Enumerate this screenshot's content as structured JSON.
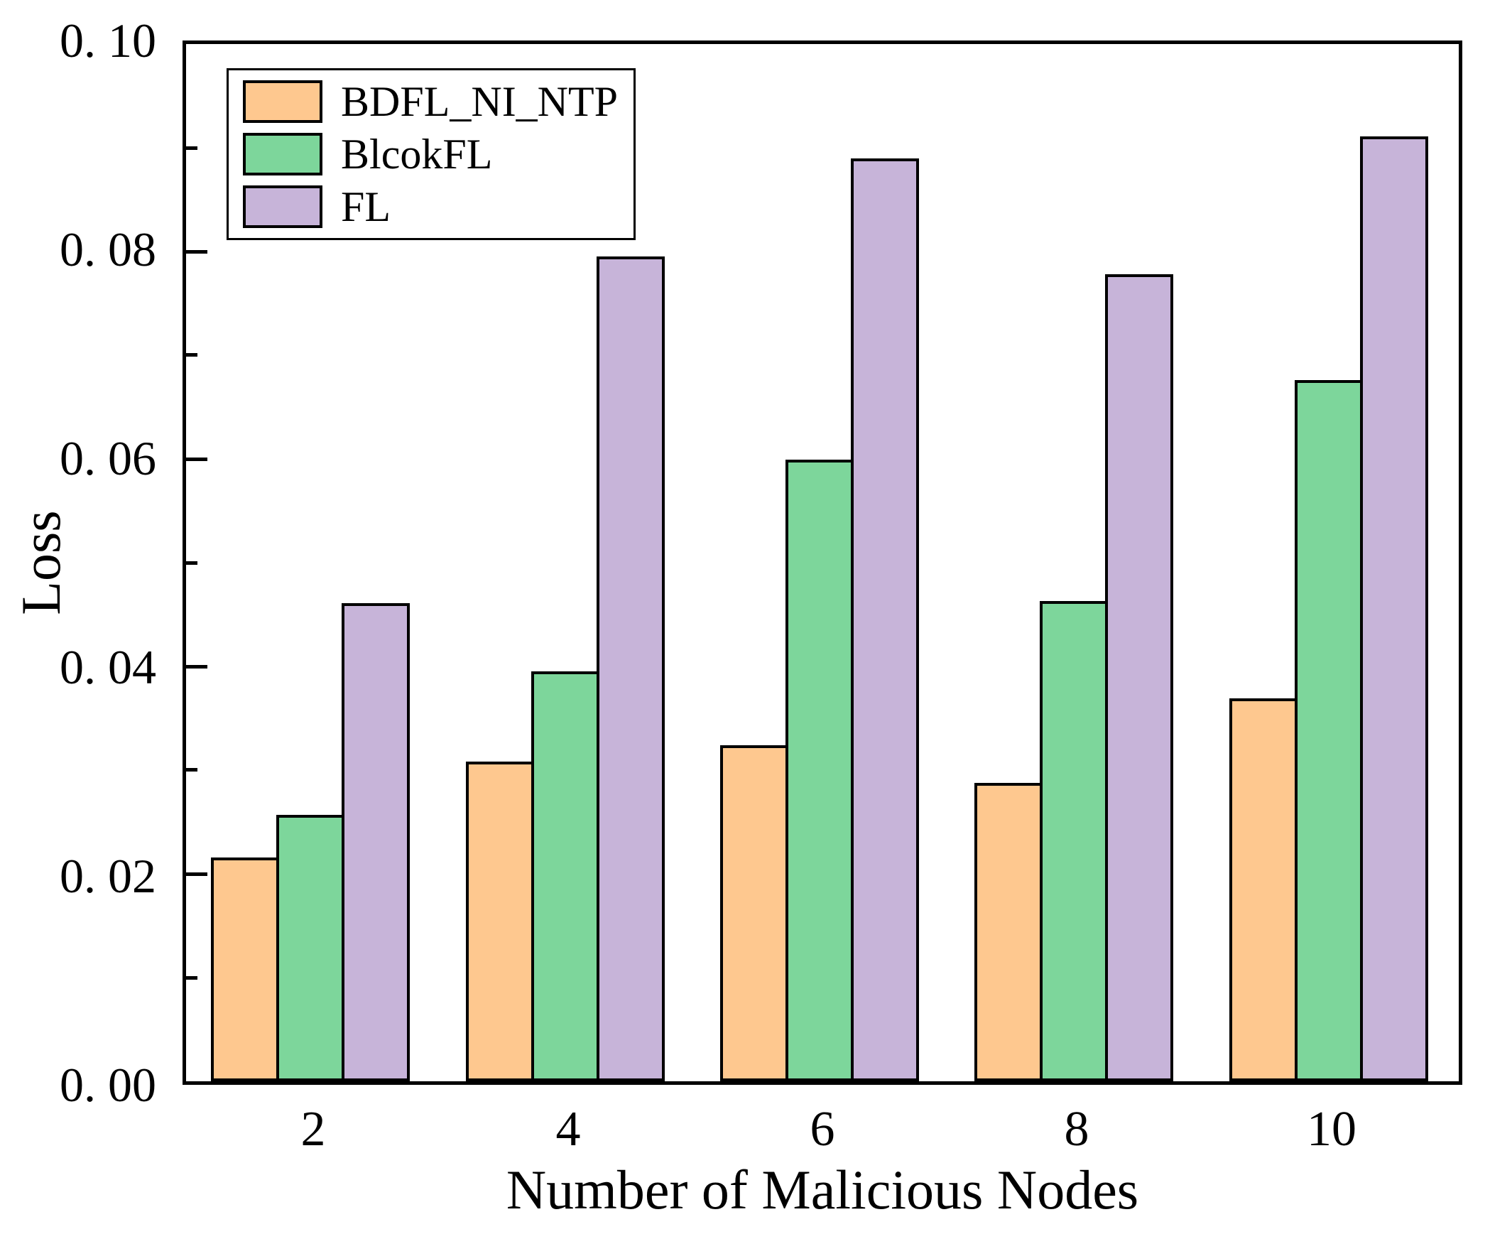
{
  "figure": {
    "background": "#FFFFFF",
    "axis_color": "#000000"
  },
  "chart_data": {
    "type": "bar",
    "title": "",
    "xlabel": "Number of Malicious Nodes",
    "ylabel": "Loss",
    "categories": [
      "2",
      "4",
      "6",
      "8",
      "10"
    ],
    "series": [
      {
        "name": "BDFL_NI_NTP",
        "color": "#FEC88F",
        "values": [
          0.0216,
          0.0308,
          0.0324,
          0.0288,
          0.0369
        ]
      },
      {
        "name": "BlcokFL",
        "color": "#7DD69B",
        "values": [
          0.0257,
          0.0395,
          0.0599,
          0.0463,
          0.0676
        ]
      },
      {
        "name": "FL",
        "color": "#C7B4D9",
        "values": [
          0.0461,
          0.0795,
          0.089,
          0.0778,
          0.0911
        ]
      }
    ],
    "ylim": [
      0,
      0.1
    ],
    "y_major_ticks": [
      0.0,
      0.02,
      0.04,
      0.06,
      0.08,
      0.1
    ],
    "y_minor_ticks": [
      0.01,
      0.03,
      0.05,
      0.07,
      0.09
    ],
    "y_tick_labels": [
      "0. 00",
      "0. 02",
      "0. 04",
      "0. 06",
      "0. 08",
      "0. 10"
    ],
    "x_tick_labels": [
      "2",
      "4",
      "6",
      "8",
      "10"
    ],
    "grid": false,
    "legend": {
      "position": "top-left",
      "items": [
        "BDFL_NI_NTP",
        "BlcokFL",
        "FL"
      ]
    }
  }
}
